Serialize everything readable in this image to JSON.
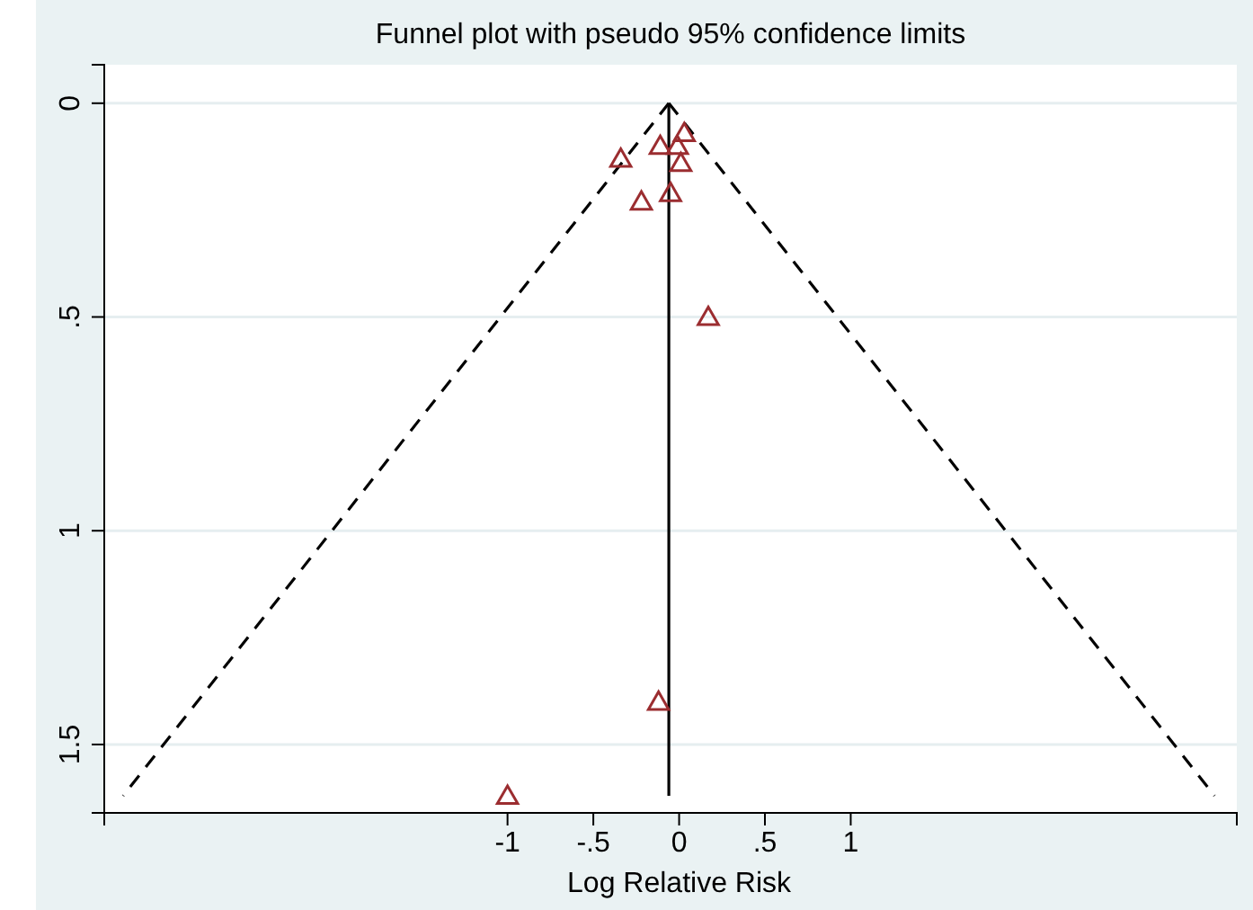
{
  "chart_data": {
    "type": "scatter",
    "title": "Funnel plot with pseudo 95% confidence limits",
    "xlabel": "Log Relative Risk",
    "xlim": [
      -3.35,
      3.25
    ],
    "ylim": [
      1.66,
      -0.09
    ],
    "xticks": [
      -1,
      {
        "value": -0.5,
        "label": "-.5"
      },
      0,
      {
        "value": 0.5,
        "label": ".5"
      },
      1
    ],
    "yticks": [
      0,
      {
        "value": 0.5,
        "label": ".5"
      },
      1,
      1.5
    ],
    "grid": "y",
    "series": [
      {
        "type": "line",
        "color": "#000000",
        "line_style": "solid",
        "x": [
          -0.06,
          -0.06
        ],
        "values": [
          0,
          1.62
        ]
      },
      {
        "type": "line",
        "color": "#000000",
        "line_style": "dashed",
        "x": [
          -0.06,
          -3.24
        ],
        "values": [
          0,
          1.62
        ]
      },
      {
        "type": "line",
        "color": "#000000",
        "line_style": "dashed",
        "x": [
          -0.06,
          3.12
        ],
        "values": [
          0,
          1.62
        ]
      },
      {
        "color": "#9b2d30",
        "marker": "triangle",
        "x": [
          0.03,
          -0.11,
          -0.01,
          -0.34,
          0.01,
          -0.05,
          -0.22,
          0.17,
          -0.12,
          -1.0
        ],
        "values": [
          0.07,
          0.1,
          0.1,
          0.13,
          0.14,
          0.21,
          0.23,
          0.5,
          1.4,
          1.62
        ]
      }
    ]
  }
}
